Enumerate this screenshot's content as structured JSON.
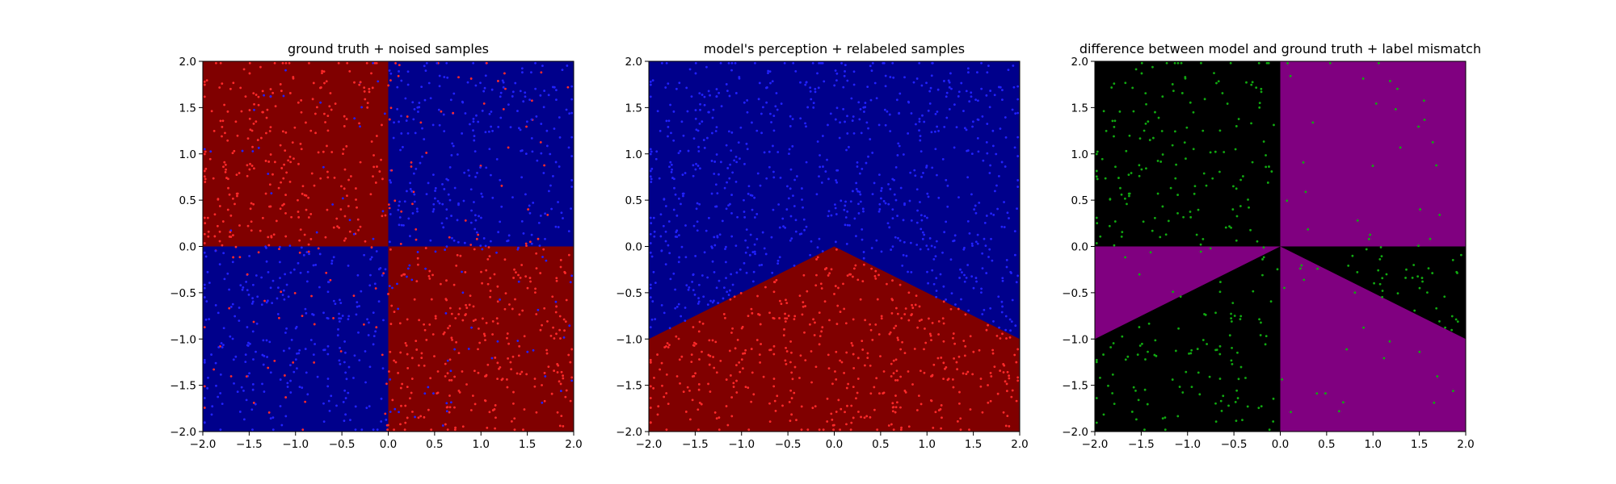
{
  "colors": {
    "red": "#800000",
    "blue": "#00008b",
    "black": "#000000",
    "purple": "#800080",
    "point_red": "#ff2a2a",
    "point_blue": "#2222ff",
    "point_green": "#11aa11"
  },
  "chart_data": [
    {
      "type": "scatter",
      "title": "ground truth + noised samples",
      "xlim": [
        -2,
        2
      ],
      "ylim": [
        -2,
        2
      ],
      "xticks": [
        "−2.0",
        "−1.5",
        "−1.0",
        "−0.5",
        "0.0",
        "0.5",
        "1.0",
        "1.5",
        "2.0"
      ],
      "yticks": [
        "−2.0",
        "−1.5",
        "−1.0",
        "−0.5",
        "0.0",
        "0.5",
        "1.0",
        "1.5",
        "2.0"
      ],
      "background": "quadrants: red where x*y<0, blue where x*y>0",
      "series": [
        {
          "label": "red samples",
          "color": "point_red",
          "count": 650
        },
        {
          "label": "blue samples",
          "color": "point_blue",
          "count": 650
        }
      ]
    },
    {
      "type": "scatter",
      "title": "model's perception + relabeled samples",
      "xlim": [
        -2,
        2
      ],
      "ylim": [
        -2,
        2
      ],
      "xticks": [
        "−2.0",
        "−1.5",
        "−1.0",
        "−0.5",
        "0.0",
        "0.5",
        "1.0",
        "1.5",
        "2.0"
      ],
      "yticks": [
        "−2.0",
        "−1.5",
        "−1.0",
        "−0.5",
        "0.0",
        "0.5",
        "1.0",
        "1.5",
        "2.0"
      ],
      "background": "blue above a wedge boundary (y = 0.5*x for x<0, y = -0.5*x for x>0), red below",
      "series": [
        {
          "label": "red samples",
          "color": "point_red",
          "count": 650
        },
        {
          "label": "blue samples",
          "color": "point_blue",
          "count": 650
        }
      ]
    },
    {
      "type": "scatter",
      "title": "difference between model and ground truth + label mismatch",
      "xlim": [
        -2,
        2
      ],
      "ylim": [
        -2,
        2
      ],
      "xticks": [
        "−2.0",
        "−1.5",
        "−1.0",
        "−0.5",
        "0.0",
        "0.5",
        "1.0",
        "1.5",
        "2.0"
      ],
      "yticks": [
        "−2.0",
        "−1.5",
        "−1.0",
        "−0.5",
        "0.0",
        "0.5",
        "1.0",
        "1.5",
        "2.0"
      ],
      "background": "purple where model differs from ground truth, black where they agree",
      "series": [
        {
          "label": "mismatched samples",
          "color": "point_green",
          "count": 420
        }
      ]
    }
  ]
}
